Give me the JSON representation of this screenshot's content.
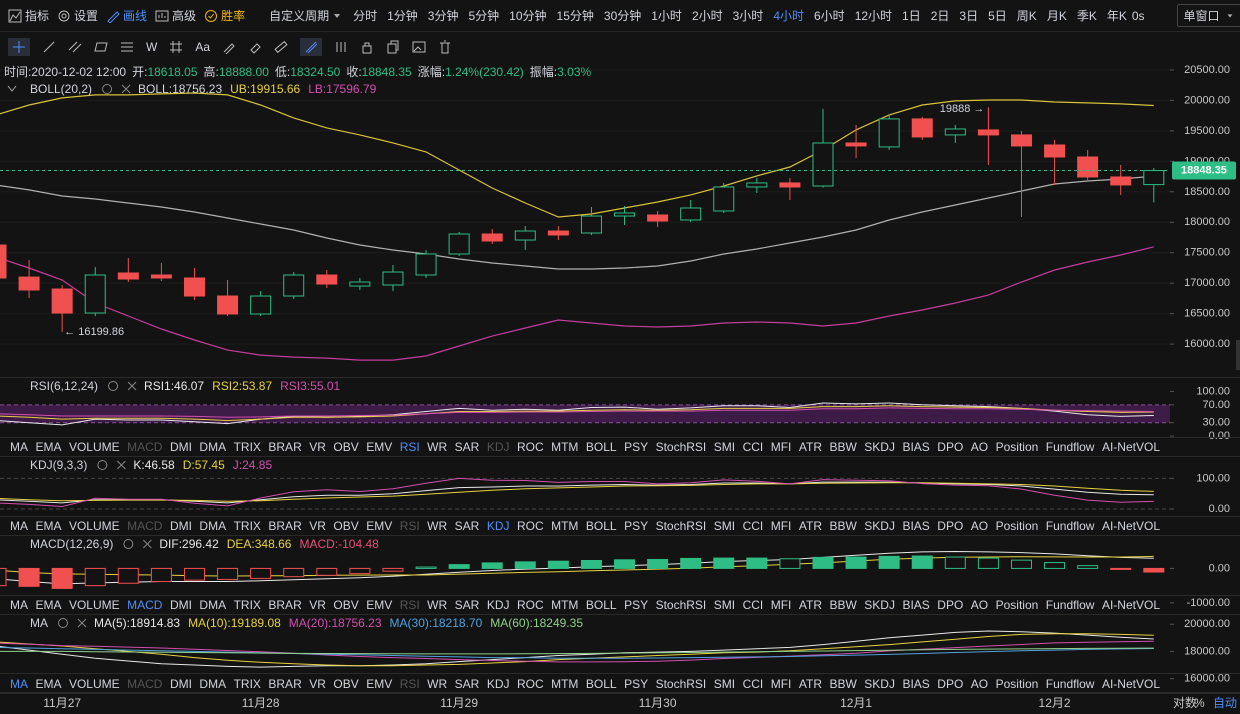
{
  "toolbar": {
    "left": [
      "指标",
      "设置",
      "画线",
      "高级",
      "胜率"
    ],
    "custom_period": "自定义周期",
    "periods": [
      "分时",
      "1分钟",
      "3分钟",
      "5分钟",
      "10分钟",
      "15分钟",
      "30分钟",
      "1小时",
      "2小时",
      "3小时",
      "4小时",
      "6小时",
      "12小时",
      "1日",
      "2日",
      "3日",
      "5日",
      "周K",
      "月K",
      "季K",
      "年K"
    ],
    "active_period": "4小时",
    "timer": "0s",
    "window": "单窗口"
  },
  "drawing_tools": {
    "labels": [
      "W",
      "Aa"
    ]
  },
  "info": [
    {
      "label": "时间:",
      "value": "2020-12-02 12:00"
    },
    {
      "label": "开:",
      "value": "18618.05"
    },
    {
      "label": "高:",
      "value": "18888.00"
    },
    {
      "label": "低:",
      "value": "18324.50"
    },
    {
      "label": "收:",
      "value": "18848.35"
    },
    {
      "label": "涨幅:",
      "value": "1.24%(230.42)"
    },
    {
      "label": "振幅:",
      "value": "3.03%"
    }
  ],
  "main": {
    "categories": [
      null,
      null,
      "11月27",
      null,
      null,
      null,
      null,
      null,
      "11月28",
      null,
      null,
      null,
      null,
      null,
      "11月29",
      null,
      null,
      null,
      null,
      null,
      "11月30",
      null,
      null,
      null,
      null,
      null,
      "12月1",
      null,
      null,
      null,
      null,
      null,
      "12月2",
      null,
      null,
      null
    ],
    "open": [
      17626,
      17100,
      16904,
      16510,
      17167,
      17134,
      17085,
      16789,
      16494,
      16789,
      17134,
      16953,
      16970,
      17134,
      17479,
      17807,
      17708,
      17856,
      17823,
      18102,
      18119,
      18037,
      18185,
      18579,
      18645,
      18595,
      19301,
      19236,
      19696,
      19433,
      19515,
      19433,
      19268,
      19071,
      18743,
      18618.05
    ],
    "high": [
      17700,
      17380,
      16970,
      17265,
      17413,
      17331,
      17249,
      17052,
      16871,
      17183,
      17216,
      17085,
      17298,
      17544,
      17840,
      17889,
      17938,
      17938,
      18250,
      18267,
      18185,
      18365,
      18645,
      18727,
      18727,
      19860,
      19597,
      19745,
      19728,
      19597,
      19888,
      19498,
      19351,
      19186,
      18940,
      18888
    ],
    "low": [
      17050,
      16756,
      16199.86,
      16460,
      17019,
      17035,
      16724,
      16461,
      16461,
      16740,
      16920,
      16888,
      16871,
      17085,
      17446,
      17643,
      17544,
      17709,
      17791,
      17955,
      17922,
      18004,
      18152,
      18480,
      18365,
      18570,
      19055,
      19186,
      19351,
      19301,
      18940,
      18086,
      18612,
      18694,
      18448,
      18324.5
    ],
    "close": [
      17085,
      16888,
      16510,
      17134,
      17068,
      17085,
      16789,
      16494,
      16789,
      17134,
      16986,
      17019,
      17183,
      17479,
      17807,
      17692,
      17856,
      17791,
      18102,
      18152,
      18020,
      18234,
      18579,
      18645,
      18579,
      19301,
      19252,
      19696,
      19400,
      19531,
      19433,
      19252,
      19071,
      18743,
      18612,
      18848.35
    ],
    "up_color": "#2ebd85",
    "down_color": "#f0504f",
    "ylim": [
      15460,
      20630
    ],
    "yticks": [
      {
        "value": 20500,
        "label": "20500.00"
      },
      {
        "value": 20000,
        "label": "20000.00"
      },
      {
        "value": 19500,
        "label": "19500.00"
      },
      {
        "value": 19000,
        "label": "19000.00"
      },
      {
        "value": 18500,
        "label": "18500.00"
      },
      {
        "value": 18000,
        "label": "18000.00"
      },
      {
        "value": 17500,
        "label": "17500.00"
      },
      {
        "value": 17000,
        "label": "17000.00"
      },
      {
        "value": 16500,
        "label": "16500.00"
      },
      {
        "value": 16000,
        "label": "16000.00"
      }
    ],
    "last_price": {
      "value": 18848.35,
      "label": "18848.35"
    },
    "high_note": {
      "value": 19888,
      "label": "19888 →"
    },
    "low_note": {
      "value": 16199.86,
      "label": "← 16199.86"
    },
    "boll": {
      "title": "BOLL(20,2)",
      "series": [
        {
          "label": "BOLL:18756.23",
          "color": "#b0b0b0",
          "text_color": "#d1d4dc",
          "values": [
            18612,
            18530,
            18431,
            18382,
            18316,
            18250,
            18168,
            18070,
            17971,
            17873,
            17742,
            17626,
            17544,
            17479,
            17397,
            17331,
            17282,
            17232,
            17232,
            17249,
            17282,
            17364,
            17479,
            17561,
            17659,
            17758,
            17873,
            18037,
            18168,
            18283,
            18398,
            18513,
            18628,
            18677,
            18710,
            18756.23
          ]
        },
        {
          "label": "UB:19915.66",
          "color": "#d9c33a",
          "text_color": "#e8d13f",
          "values": [
            19761,
            19925,
            20040,
            20090,
            20090,
            20106,
            20122,
            20090,
            19925,
            19712,
            19548,
            19433,
            19302,
            19154,
            18858,
            18562,
            18316,
            18086,
            18136,
            18234,
            18333,
            18448,
            18595,
            18760,
            18907,
            19186,
            19515,
            19761,
            19925,
            19991,
            20007,
            20007,
            19974,
            19958,
            19942,
            19915.66
          ]
        },
        {
          "label": "LB:17596.79",
          "color": "#c33d9e",
          "text_color": "#d24fb0",
          "values": [
            17429,
            17249,
            17052,
            16674,
            16461,
            16247,
            16067,
            15902,
            15820,
            15787,
            15771,
            15738,
            15738,
            15804,
            15968,
            16132,
            16264,
            16395,
            16346,
            16297,
            16280,
            16297,
            16346,
            16362,
            16346,
            16297,
            16346,
            16461,
            16559,
            16674,
            16805,
            17019,
            17216,
            17347,
            17462,
            17596.79
          ]
        }
      ]
    }
  },
  "indicator_tabs": [
    "MA",
    "EMA",
    "VOLUME",
    "MACD",
    "DMI",
    "DMA",
    "TRIX",
    "BRAR",
    "VR",
    "OBV",
    "EMV",
    "RSI",
    "WR",
    "SAR",
    "KDJ",
    "ROC",
    "MTM",
    "BOLL",
    "PSY",
    "StochRSI",
    "SMI",
    "CCI",
    "MFI",
    "ATR",
    "BBW",
    "SKDJ",
    "BIAS",
    "DPO",
    "AO",
    "Position",
    "Fundflow",
    "AI-NetVOL"
  ],
  "indicators": [
    {
      "title": "RSI(6,12,24)",
      "ylim": [
        -2,
        130
      ],
      "yticks": [
        {
          "value": 100,
          "label": "100.00"
        },
        {
          "value": 70,
          "label": "70.00"
        },
        {
          "value": 30,
          "label": "30.00"
        },
        {
          "value": 0,
          "label": "0.00"
        }
      ],
      "band_color": "#3d1b47",
      "tab_active": "RSI",
      "tab_dimmed": [
        "MACD",
        "KDJ"
      ],
      "series": [
        {
          "label": "RSI1:46.07",
          "color": "#e8e8e8",
          "values": [
            35,
            30,
            25,
            38,
            36,
            36,
            32,
            28,
            38,
            44,
            42,
            44,
            48,
            55,
            62,
            58,
            60,
            58,
            64,
            65,
            60,
            63,
            68,
            68,
            64,
            74,
            72,
            74,
            70,
            68,
            66,
            62,
            56,
            48,
            44,
            46.07
          ]
        },
        {
          "label": "RSI2:53.87",
          "color": "#e8d13f",
          "values": [
            45,
            42,
            38,
            40,
            40,
            40,
            38,
            35,
            38,
            42,
            42,
            43,
            45,
            50,
            55,
            55,
            56,
            56,
            58,
            59,
            58,
            59,
            62,
            62,
            62,
            66,
            66,
            68,
            66,
            65,
            64,
            62,
            58,
            55,
            53,
            53.87
          ]
        },
        {
          "label": "RSI3:55.01",
          "color": "#d24fb0",
          "values": [
            50,
            48,
            45,
            45,
            45,
            45,
            44,
            42,
            43,
            45,
            45,
            46,
            47,
            50,
            53,
            53,
            54,
            54,
            55,
            56,
            56,
            56,
            58,
            58,
            58,
            61,
            61,
            63,
            62,
            61,
            61,
            60,
            58,
            57,
            56,
            55.01
          ]
        }
      ]
    },
    {
      "title": "KDJ(9,3,3)",
      "ylim": [
        -23,
        170
      ],
      "yticks": [
        {
          "value": 100,
          "label": "100.00"
        },
        {
          "value": 0,
          "label": "0.00"
        }
      ],
      "tab_active": "KDJ",
      "tab_dimmed": [
        "MACD",
        "RSI"
      ],
      "series": [
        {
          "label": "K:46.58",
          "color": "#e8e8e8",
          "values": [
            30,
            25,
            20,
            30,
            30,
            30,
            25,
            20,
            30,
            40,
            45,
            45,
            50,
            60,
            70,
            72,
            75,
            75,
            78,
            80,
            78,
            80,
            85,
            85,
            82,
            88,
            88,
            88,
            85,
            82,
            80,
            75,
            65,
            55,
            48,
            46.58
          ]
        },
        {
          "label": "D:57.45",
          "color": "#e8d13f",
          "values": [
            35,
            30,
            27,
            28,
            29,
            29,
            28,
            25,
            27,
            32,
            36,
            39,
            42,
            48,
            55,
            61,
            66,
            69,
            72,
            75,
            76,
            77,
            80,
            82,
            82,
            84,
            85,
            86,
            86,
            84,
            82,
            80,
            75,
            68,
            61,
            57.45
          ]
        },
        {
          "label": "J:24.85",
          "color": "#d24fb0",
          "values": [
            20,
            15,
            8,
            35,
            32,
            32,
            19,
            10,
            36,
            56,
            63,
            57,
            66,
            84,
            100,
            94,
            93,
            87,
            90,
            90,
            82,
            86,
            95,
            91,
            82,
            96,
            94,
            92,
            83,
            78,
            76,
            65,
            45,
            29,
            22,
            24.85
          ]
        }
      ]
    },
    {
      "title": "MACD(12,26,9)",
      "ylim": [
        -1265,
        941
      ],
      "yticks": [
        {
          "value": 0,
          "label": "0.00"
        },
        {
          "value": -1000,
          "label": "-1000.00"
        }
      ],
      "tab_active": "MACD",
      "tab_dimmed": [
        "RSI"
      ],
      "up_color": "#2ebd85",
      "down_color": "#f0504f",
      "series": [
        {
          "label": "DIF:296.42",
          "color": "#e8e8e8",
          "values": [
            -300,
            -380,
            -450,
            -420,
            -400,
            -380,
            -380,
            -380,
            -360,
            -330,
            -300,
            -270,
            -230,
            -170,
            -110,
            -60,
            -20,
            10,
            50,
            80,
            110,
            150,
            200,
            230,
            260,
            320,
            380,
            440,
            480,
            490,
            480,
            460,
            420,
            370,
            320,
            296.42
          ]
        },
        {
          "label": "DEA:348.66",
          "color": "#e8d13f",
          "values": [
            -50,
            -120,
            -160,
            -170,
            -185,
            -190,
            -210,
            -220,
            -215,
            -210,
            -200,
            -195,
            -190,
            -190,
            -165,
            -140,
            -115,
            -95,
            -65,
            -45,
            -20,
            5,
            50,
            80,
            120,
            160,
            215,
            265,
            300,
            325,
            330,
            340,
            335,
            330,
            330,
            348.66
          ]
        },
        {
          "label": "MACD:-104.48",
          "color": "#e8507a",
          "kind": "bar",
          "values": [
            -500,
            -520,
            -580,
            -500,
            -430,
            -380,
            -340,
            -320,
            -290,
            -240,
            -200,
            -150,
            -80,
            40,
            110,
            160,
            190,
            210,
            230,
            250,
            260,
            290,
            300,
            300,
            280,
            320,
            330,
            350,
            360,
            330,
            300,
            240,
            170,
            80,
            -20,
            -104.48
          ]
        }
      ]
    },
    {
      "title": "MA",
      "ylim": [
        15019,
        20679
      ],
      "yticks": [
        {
          "value": 20000,
          "label": "20000.00"
        },
        {
          "value": 18000,
          "label": "18000.00"
        },
        {
          "value": 16000,
          "label": "16000.00"
        }
      ],
      "tab_active": "MA",
      "tab_dimmed": [
        "MACD",
        "RSI"
      ],
      "series": [
        {
          "label": "MA(5):18914.83",
          "color": "#e8e8e8",
          "values": [
            18400,
            18100,
            17800,
            17500,
            17300,
            17100,
            17000,
            16900,
            16850,
            16900,
            16950,
            16950,
            17000,
            17100,
            17250,
            17400,
            17550,
            17700,
            17800,
            17900,
            17950,
            18000,
            18100,
            18200,
            18300,
            18500,
            18750,
            19000,
            19200,
            19400,
            19500,
            19450,
            19350,
            19200,
            19050,
            18914.83
          ]
        },
        {
          "label": "MA(10):19189.08",
          "color": "#e8d13f",
          "values": [
            18700,
            18550,
            18400,
            18200,
            18000,
            17800,
            17550,
            17350,
            17200,
            17100,
            17000,
            16950,
            16950,
            17000,
            17050,
            17150,
            17250,
            17400,
            17500,
            17600,
            17700,
            17800,
            17900,
            17950,
            18050,
            18200,
            18350,
            18500,
            18700,
            18900,
            19100,
            19250,
            19300,
            19300,
            19250,
            19189.08
          ]
        },
        {
          "label": "MA(20):18756.23",
          "color": "#d24fb0",
          "values": [
            18612,
            18530,
            18431,
            18382,
            18316,
            18250,
            18168,
            18070,
            17971,
            17873,
            17742,
            17626,
            17544,
            17479,
            17397,
            17331,
            17282,
            17232,
            17232,
            17249,
            17282,
            17364,
            17479,
            17561,
            17659,
            17758,
            17873,
            18037,
            18168,
            18283,
            18398,
            18513,
            18628,
            18677,
            18710,
            18756.23
          ]
        },
        {
          "label": "MA(30):18218.70",
          "color": "#4fa3e0",
          "values": [
            18300,
            18250,
            18200,
            18150,
            18100,
            18050,
            18000,
            17950,
            17900,
            17850,
            17800,
            17750,
            17700,
            17650,
            17600,
            17550,
            17550,
            17500,
            17500,
            17500,
            17520,
            17550,
            17580,
            17600,
            17630,
            17680,
            17730,
            17780,
            17850,
            17920,
            17990,
            18050,
            18100,
            18150,
            18190,
            18218.7
          ]
        },
        {
          "label": "MA(60):18249.35",
          "color": "#8fd18a",
          "values": [
            18000,
            18000,
            18000,
            17980,
            17960,
            17940,
            17920,
            17900,
            17880,
            17860,
            17850,
            17840,
            17830,
            17820,
            17820,
            17820,
            17830,
            17840,
            17860,
            17880,
            17900,
            17920,
            17950,
            17980,
            18000,
            18030,
            18060,
            18090,
            18120,
            18150,
            18170,
            18190,
            18210,
            18225,
            18240,
            18249.35
          ]
        }
      ]
    }
  ],
  "bottom": {
    "log": "对数",
    "percent": "%",
    "auto": "自动"
  }
}
